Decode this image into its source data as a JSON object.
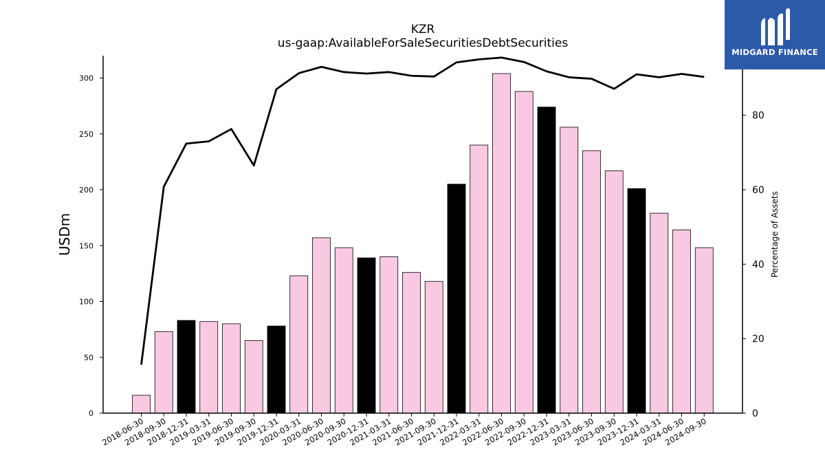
{
  "chart_data": {
    "type": "bar",
    "title": "KZR",
    "subtitle": "us-gaap:AvailableForSaleSecuritiesDebtSecurities",
    "ylabel": "USDm",
    "y2label": "Percentage of Assets",
    "ylim": [
      0,
      320
    ],
    "y2lim": [
      0,
      96
    ],
    "yticks": [
      0,
      50,
      100,
      150,
      200,
      250,
      300
    ],
    "y2ticks": [
      0,
      20,
      40,
      60,
      80
    ],
    "grid": false,
    "categories": [
      "2018-06-30",
      "2018-09-30",
      "2018-12-31",
      "2019-03-31",
      "2019-06-30",
      "2019-09-30",
      "2019-12-31",
      "2020-03-31",
      "2020-06-30",
      "2020-09-30",
      "2020-12-31",
      "2021-03-31",
      "2021-06-30",
      "2021-09-30",
      "2021-12-31",
      "2022-03-31",
      "2022-06-30",
      "2022-09-30",
      "2022-12-31",
      "2023-03-31",
      "2023-06-30",
      "2023-09-30",
      "2023-12-31",
      "2024-03-31",
      "2024-06-30",
      "2024-09-30"
    ],
    "values": [
      16,
      73,
      83,
      82,
      80,
      65,
      78,
      123,
      157,
      148,
      139,
      140,
      126,
      118,
      205,
      240,
      304,
      288,
      274,
      256,
      235,
      217,
      201,
      179,
      164,
      148
    ],
    "bar_colors": [
      "#f9c9e2",
      "#f9c9e2",
      "#000000",
      "#f9c9e2",
      "#f9c9e2",
      "#f9c9e2",
      "#000000",
      "#f9c9e2",
      "#f9c9e2",
      "#f9c9e2",
      "#000000",
      "#f9c9e2",
      "#f9c9e2",
      "#f9c9e2",
      "#000000",
      "#f9c9e2",
      "#f9c9e2",
      "#f9c9e2",
      "#000000",
      "#f9c9e2",
      "#f9c9e2",
      "#f9c9e2",
      "#000000",
      "#f9c9e2",
      "#f9c9e2",
      "#f9c9e2"
    ],
    "line_values": [
      13.0,
      60.8,
      72.4,
      73.0,
      76.3,
      66.5,
      87.0,
      91.3,
      93.0,
      91.6,
      91.2,
      91.6,
      90.6,
      90.4,
      94.2,
      95.0,
      95.5,
      94.3,
      91.8,
      90.2,
      89.8,
      87.1,
      91.0,
      90.2,
      91.1,
      90.3
    ],
    "line_color": "#000000"
  },
  "logo": {
    "text": "MIDGARD FINANCE",
    "color": "#2b5aa8"
  }
}
